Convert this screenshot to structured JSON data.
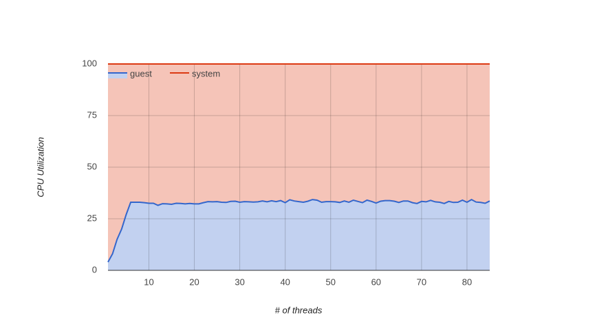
{
  "chart_data": {
    "type": "stacked_area",
    "xlabel": "# of threads",
    "ylabel": "CPU Utilization",
    "x": [
      1,
      2,
      3,
      4,
      5,
      6,
      7,
      8,
      9,
      10,
      11,
      12,
      13,
      14,
      15,
      16,
      17,
      18,
      19,
      20,
      21,
      22,
      23,
      24,
      25,
      26,
      27,
      28,
      29,
      30,
      31,
      32,
      33,
      34,
      35,
      36,
      37,
      38,
      39,
      40,
      41,
      42,
      43,
      44,
      45,
      46,
      47,
      48,
      49,
      50,
      51,
      52,
      53,
      54,
      55,
      56,
      57,
      58,
      59,
      60,
      61,
      62,
      63,
      64,
      65,
      66,
      67,
      68,
      69,
      70,
      71,
      72,
      73,
      74,
      75,
      76,
      77,
      78,
      79,
      80,
      81,
      82,
      83,
      84,
      85
    ],
    "series": [
      {
        "name": "guest",
        "color": "#3366cc",
        "fill": "#c2d1f0",
        "values": [
          4,
          8,
          15,
          20,
          27,
          33,
          33,
          33,
          32.8,
          32.5,
          32.5,
          31.5,
          32.3,
          32.2,
          32,
          32.5,
          32.4,
          32.2,
          32.4,
          32.2,
          32.2,
          32.8,
          33.3,
          33.2,
          33.3,
          33,
          32.9,
          33.4,
          33.5,
          33,
          33.3,
          33.2,
          33.1,
          33.2,
          33.6,
          33.2,
          33.7,
          33.3,
          33.8,
          32.8,
          34.2,
          33.6,
          33.3,
          33,
          33.5,
          34.3,
          34,
          33,
          33.3,
          33.3,
          33.2,
          32.9,
          33.6,
          33,
          34,
          33.4,
          32.8,
          34,
          33.4,
          32.6,
          33.5,
          33.8,
          33.8,
          33.5,
          32.9,
          33.6,
          33.6,
          32.8,
          32.4,
          33.4,
          33.2,
          33.9,
          33.2,
          33,
          32.4,
          33.4,
          32.9,
          33,
          34,
          33,
          34.3,
          33.1,
          32.9,
          32.5,
          33.6
        ]
      },
      {
        "name": "system",
        "color": "#dc3912",
        "fill": "#f5c4b8",
        "values": [
          96,
          92,
          85,
          80,
          73,
          67,
          67,
          67,
          67.2,
          67.5,
          67.5,
          68.5,
          67.7,
          67.8,
          68,
          67.5,
          67.6,
          67.8,
          67.6,
          67.8,
          67.8,
          67.2,
          66.7,
          66.8,
          66.7,
          67,
          67.1,
          66.6,
          66.5,
          67,
          66.7,
          66.8,
          66.9,
          66.8,
          66.4,
          66.8,
          66.3,
          66.7,
          66.2,
          67.2,
          65.8,
          66.4,
          66.7,
          67,
          66.5,
          65.7,
          66,
          67,
          66.7,
          66.7,
          66.8,
          67.1,
          66.4,
          67,
          66,
          66.6,
          67.2,
          66,
          66.6,
          67.4,
          66.5,
          66.2,
          66.2,
          66.5,
          67.1,
          66.4,
          66.4,
          67.2,
          67.6,
          66.6,
          66.8,
          66.1,
          66.8,
          67,
          67.6,
          66.6,
          67.1,
          67,
          66,
          67,
          65.7,
          66.9,
          67.1,
          67.5,
          66.4
        ]
      }
    ],
    "xlim": [
      1,
      85
    ],
    "xticks": [
      10,
      20,
      30,
      40,
      50,
      60,
      70,
      80
    ],
    "ylim": [
      0,
      100
    ],
    "yticks": [
      0,
      25,
      50,
      75,
      100
    ],
    "grid": true,
    "legend": "top-left"
  }
}
